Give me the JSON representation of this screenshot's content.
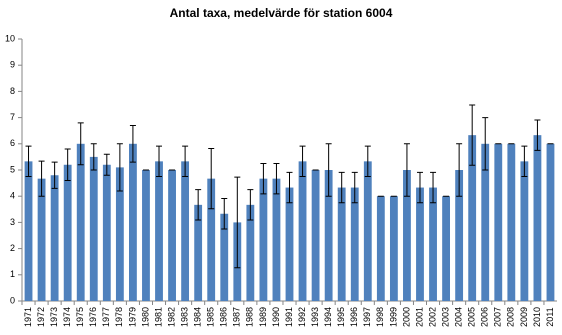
{
  "chart_data": {
    "type": "bar",
    "title": "Antal taxa, medelvärde för station 6004",
    "categories": [
      "1971",
      "1972",
      "1973",
      "1974",
      "1975",
      "1976",
      "1977",
      "1978",
      "1979",
      "1980",
      "1981",
      "1982",
      "1983",
      "1984",
      "1985",
      "1986",
      "1987",
      "1988",
      "1989",
      "1990",
      "1991",
      "1992",
      "1993",
      "1994",
      "1995",
      "1996",
      "1997",
      "1998",
      "1999",
      "2000",
      "2001",
      "2002",
      "2003",
      "2004",
      "2005",
      "2006",
      "2007",
      "2008",
      "2009",
      "2010",
      "2011"
    ],
    "values": [
      5.33,
      4.67,
      4.8,
      5.2,
      6.0,
      5.5,
      5.2,
      5.1,
      6.0,
      5.0,
      5.33,
      5.0,
      5.33,
      3.67,
      4.67,
      3.33,
      3.0,
      3.67,
      4.67,
      4.67,
      4.33,
      5.33,
      5.0,
      5.0,
      4.33,
      4.33,
      5.33,
      4.0,
      4.0,
      5.0,
      4.33,
      4.33,
      4.0,
      5.0,
      6.33,
      6.0,
      6.0,
      6.0,
      5.33,
      6.33,
      6.0
    ],
    "errors": [
      0.58,
      0.67,
      0.5,
      0.6,
      0.8,
      0.5,
      0.4,
      0.9,
      0.7,
      0,
      0.58,
      0,
      0.58,
      0.58,
      1.15,
      0.58,
      1.73,
      0.58,
      0.58,
      0.58,
      0.58,
      0.58,
      0,
      1.0,
      0.58,
      0.58,
      0.58,
      0,
      0,
      1.0,
      0.58,
      0.58,
      0,
      1.0,
      1.15,
      1.0,
      0,
      0,
      0.58,
      0.58,
      0
    ],
    "color": "#4f81bd",
    "ylim": [
      0,
      10
    ],
    "yticks": [
      0,
      1,
      2,
      3,
      4,
      5,
      6,
      7,
      8,
      9,
      10
    ],
    "grid": false
  }
}
